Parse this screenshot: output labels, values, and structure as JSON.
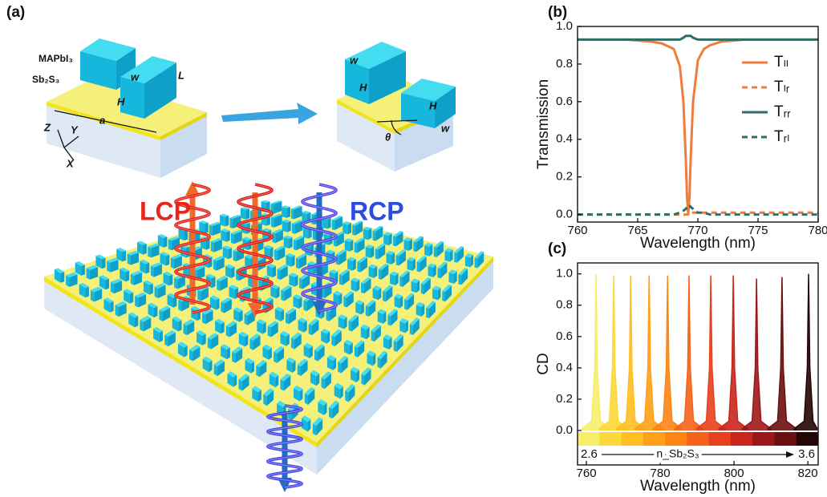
{
  "illustration": {
    "panel_label": "(a)",
    "material_top": "MAPbI₃",
    "material_bottom": "Sb₂S₃",
    "lcp": "LCP",
    "rcp": "RCP",
    "dims_left": [
      "w",
      "L",
      "H",
      "a"
    ],
    "dims_right": [
      "w",
      "H",
      "H",
      "w",
      "θ"
    ],
    "axes": [
      "Z",
      "Y",
      "X"
    ]
  },
  "chart_data": [
    {
      "type": "line",
      "panel_label": "(b)",
      "x_label": "Wavelength (nm)",
      "y_label": "Transmission",
      "x": [
        760,
        762,
        764,
        766,
        767,
        768,
        768.5,
        768.8,
        769,
        769.1,
        769.2,
        769.3,
        769.4,
        769.6,
        770,
        770.5,
        771,
        772,
        774,
        776,
        778,
        780
      ],
      "xlim": [
        760,
        780
      ],
      "xticks": [
        760,
        765,
        770,
        775,
        780
      ],
      "ylim": [
        -0.04,
        1
      ],
      "yticks": [
        {
          "value": 0,
          "label": "0.0"
        },
        0.2,
        0.4,
        0.6,
        0.8,
        {
          "value": 1,
          "label": "1.0"
        }
      ],
      "legend": "right",
      "series": [
        {
          "name": "Tₗₗ",
          "color": "#f07c3c",
          "dash": false,
          "values": [
            0.93,
            0.93,
            0.93,
            0.92,
            0.91,
            0.88,
            0.79,
            0.6,
            0.29,
            0.09,
            0,
            0.09,
            0.29,
            0.6,
            0.82,
            0.88,
            0.9,
            0.92,
            0.93,
            0.93,
            0.93,
            0.93
          ]
        },
        {
          "name": "Tₗᵣ",
          "color": "#f07c3c",
          "dash": true,
          "values": [
            0,
            0,
            0,
            0,
            0,
            0,
            0,
            0,
            0,
            0,
            0,
            0.01,
            0.01,
            0.01,
            0.01,
            0.01,
            0.01,
            0.01,
            0.01,
            0.01,
            0.01,
            0.01
          ]
        },
        {
          "name": "Tᵣᵣ",
          "color": "#2e6e68",
          "dash": false,
          "values": [
            0.93,
            0.93,
            0.93,
            0.93,
            0.93,
            0.93,
            0.93,
            0.94,
            0.95,
            0.95,
            0.95,
            0.95,
            0.95,
            0.94,
            0.93,
            0.93,
            0.93,
            0.93,
            0.93,
            0.93,
            0.93,
            0.93
          ]
        },
        {
          "name": "Tᵣₗ",
          "color": "#2e6e68",
          "dash": true,
          "values": [
            0,
            0,
            0,
            0,
            0,
            0,
            0.01,
            0.02,
            0.03,
            0.04,
            0.05,
            0.05,
            0.04,
            0.03,
            0.01,
            0.01,
            0,
            0,
            0,
            0,
            0,
            0
          ]
        }
      ]
    },
    {
      "type": "area",
      "panel_label": "(c)",
      "x_label": "Wavelength (nm)",
      "y_label": "CD",
      "xlim": [
        757.6,
        822.8
      ],
      "xticks": [
        760,
        780,
        800,
        820
      ],
      "ylim": [
        -0.22,
        1.07
      ],
      "yticks": [
        {
          "value": 0,
          "label": "0.0"
        },
        0.2,
        0.4,
        0.6,
        0.8,
        {
          "value": 1,
          "label": "1.0"
        }
      ],
      "colorbar": {
        "label": "n_Sb₂S₃",
        "range": [
          2.6,
          3.6
        ]
      },
      "series": [
        {
          "color": "#f6ee6a",
          "x": [
            758.6,
            761.4,
            762.25,
            762.6,
            762.95,
            763.8,
            766.6
          ],
          "values": [
            0.01,
            0.06,
            0.4,
            1.0,
            0.4,
            0.06,
            0.01
          ]
        },
        {
          "color": "#fcd83a",
          "x": [
            763.4,
            766.2,
            767.05,
            767.4,
            767.75,
            768.6,
            771.4
          ],
          "values": [
            0.01,
            0.06,
            0.4,
            0.99,
            0.4,
            0.06,
            0.01
          ]
        },
        {
          "color": "#ffbe22",
          "x": [
            768,
            770.8,
            771.65,
            772,
            772.35,
            773.2,
            776
          ],
          "values": [
            0.01,
            0.06,
            0.4,
            0.99,
            0.4,
            0.06,
            0.01
          ]
        },
        {
          "color": "#ffa018",
          "x": [
            773,
            775.8,
            776.65,
            777,
            777.35,
            778.2,
            781
          ],
          "values": [
            0.01,
            0.06,
            0.4,
            0.99,
            0.4,
            0.06,
            0.01
          ]
        },
        {
          "color": "#ff8414",
          "x": [
            778,
            780.8,
            781.65,
            782,
            782.35,
            783.2,
            786
          ],
          "values": [
            0.01,
            0.06,
            0.4,
            0.99,
            0.4,
            0.06,
            0.01
          ]
        },
        {
          "color": "#f6621a",
          "x": [
            783.8,
            786.6,
            787.45,
            787.8,
            788.15,
            789,
            791.8
          ],
          "values": [
            0.01,
            0.06,
            0.4,
            0.99,
            0.4,
            0.06,
            0.01
          ]
        },
        {
          "color": "#e8401c",
          "x": [
            789.7,
            792.5,
            793.35,
            793.7,
            794.05,
            794.9,
            797.7
          ],
          "values": [
            0.01,
            0.06,
            0.4,
            0.99,
            0.4,
            0.06,
            0.01
          ]
        },
        {
          "color": "#c8261c",
          "x": [
            795.8,
            798.6,
            799.45,
            799.8,
            800.15,
            801,
            803.8
          ],
          "values": [
            0.01,
            0.06,
            0.4,
            0.99,
            0.4,
            0.06,
            0.01
          ]
        },
        {
          "color": "#9c1818",
          "x": [
            802.1,
            804.9,
            805.75,
            806.1,
            806.45,
            807.3,
            810.1
          ],
          "values": [
            0.01,
            0.06,
            0.4,
            0.97,
            0.4,
            0.06,
            0.01
          ]
        },
        {
          "color": "#6a1010",
          "x": [
            809,
            811.8,
            812.65,
            813,
            813.35,
            814.2,
            817
          ],
          "values": [
            0.01,
            0.06,
            0.4,
            0.98,
            0.4,
            0.06,
            0.01
          ]
        },
        {
          "color": "#240606",
          "x": [
            816.2,
            819,
            819.85,
            820.2,
            820.55,
            821.4,
            822.6
          ],
          "values": [
            0.01,
            0.06,
            0.4,
            1.0,
            0.4,
            0.06,
            0.01
          ]
        }
      ]
    }
  ]
}
